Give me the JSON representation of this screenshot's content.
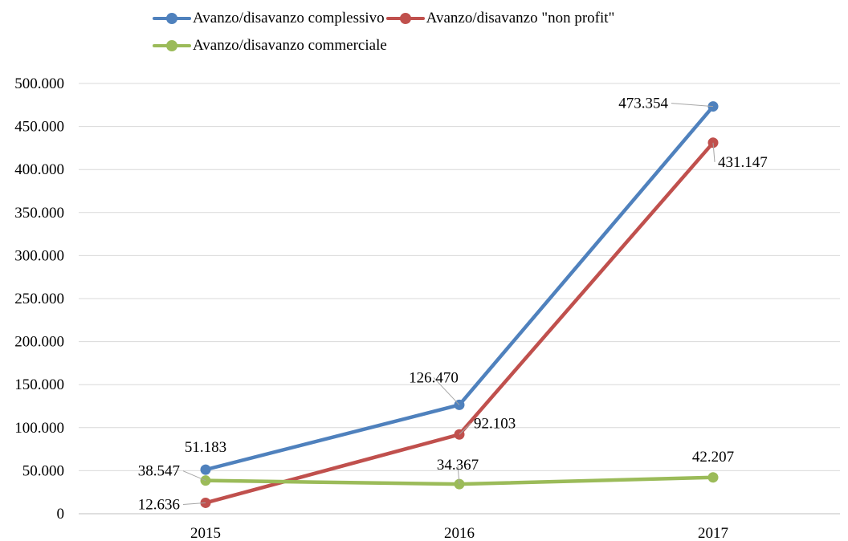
{
  "chart_data": {
    "type": "line",
    "title": "",
    "xlabel": "",
    "ylabel": "",
    "categories": [
      "2015",
      "2016",
      "2017"
    ],
    "ylim": [
      0,
      500000
    ],
    "y_ticks": [
      "0",
      "50.000",
      "100.000",
      "150.000",
      "200.000",
      "250.000",
      "300.000",
      "350.000",
      "400.000",
      "450.000",
      "500.000"
    ],
    "grid": true,
    "legend_position": "top",
    "series": [
      {
        "name": "Avanzo/disavanzo complessivo",
        "color": "#4f81bd",
        "values": [
          51183,
          126470,
          473354
        ],
        "labels": [
          "51.183",
          "126.470",
          "473.354"
        ]
      },
      {
        "name": "Avanzo/disavanzo \"non profit\"",
        "color": "#c0504d",
        "values": [
          12636,
          92103,
          431147
        ],
        "labels": [
          "12.636",
          "92.103",
          "431.147"
        ]
      },
      {
        "name": "Avanzo/disavanzo commerciale",
        "color": "#9bbb59",
        "values": [
          38547,
          34367,
          42207
        ],
        "labels": [
          "38.547",
          "34.367",
          "42.207"
        ]
      }
    ]
  }
}
